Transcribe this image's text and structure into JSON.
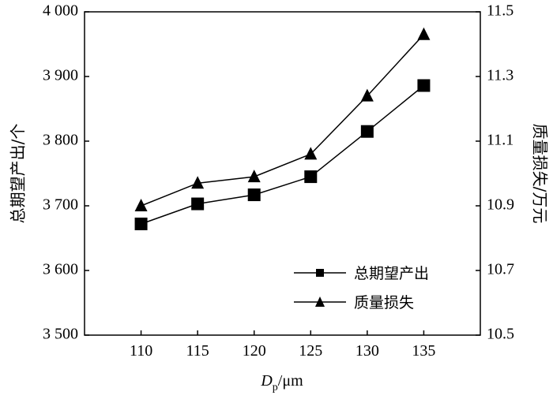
{
  "chart_data": {
    "type": "line",
    "x": [
      110,
      115,
      120,
      125,
      130,
      135
    ],
    "xlim": [
      105,
      140
    ],
    "x_ticks": [
      "110",
      "115",
      "120",
      "125",
      "130",
      "135"
    ],
    "xlabel_main": "D",
    "xlabel_sub": "p",
    "xlabel_rest": "/μm",
    "ylabel_left": "总期望产出/个",
    "ylabel_right": "质量损失/万元",
    "ylim_left": [
      3500,
      4000
    ],
    "ylim_right": [
      10.5,
      11.5
    ],
    "yticks_left": [
      "3 500",
      "3 600",
      "3 700",
      "3 800",
      "3 900",
      "4 000"
    ],
    "yticks_right": [
      "10.5",
      "10.7",
      "10.9",
      "11.1",
      "11.3",
      "11.5"
    ],
    "series": [
      {
        "name": "总期望产出",
        "axis": "left",
        "marker": "square",
        "values": [
          3672,
          3703,
          3717,
          3745,
          3815,
          3886
        ]
      },
      {
        "name": "质量损失",
        "axis": "right",
        "marker": "triangle",
        "values": [
          10.9,
          10.97,
          10.99,
          11.06,
          11.24,
          11.43
        ]
      }
    ],
    "legend_position": "bottom-right",
    "grid": false,
    "colors": {
      "line": "#000000",
      "marker": "#000000"
    }
  }
}
